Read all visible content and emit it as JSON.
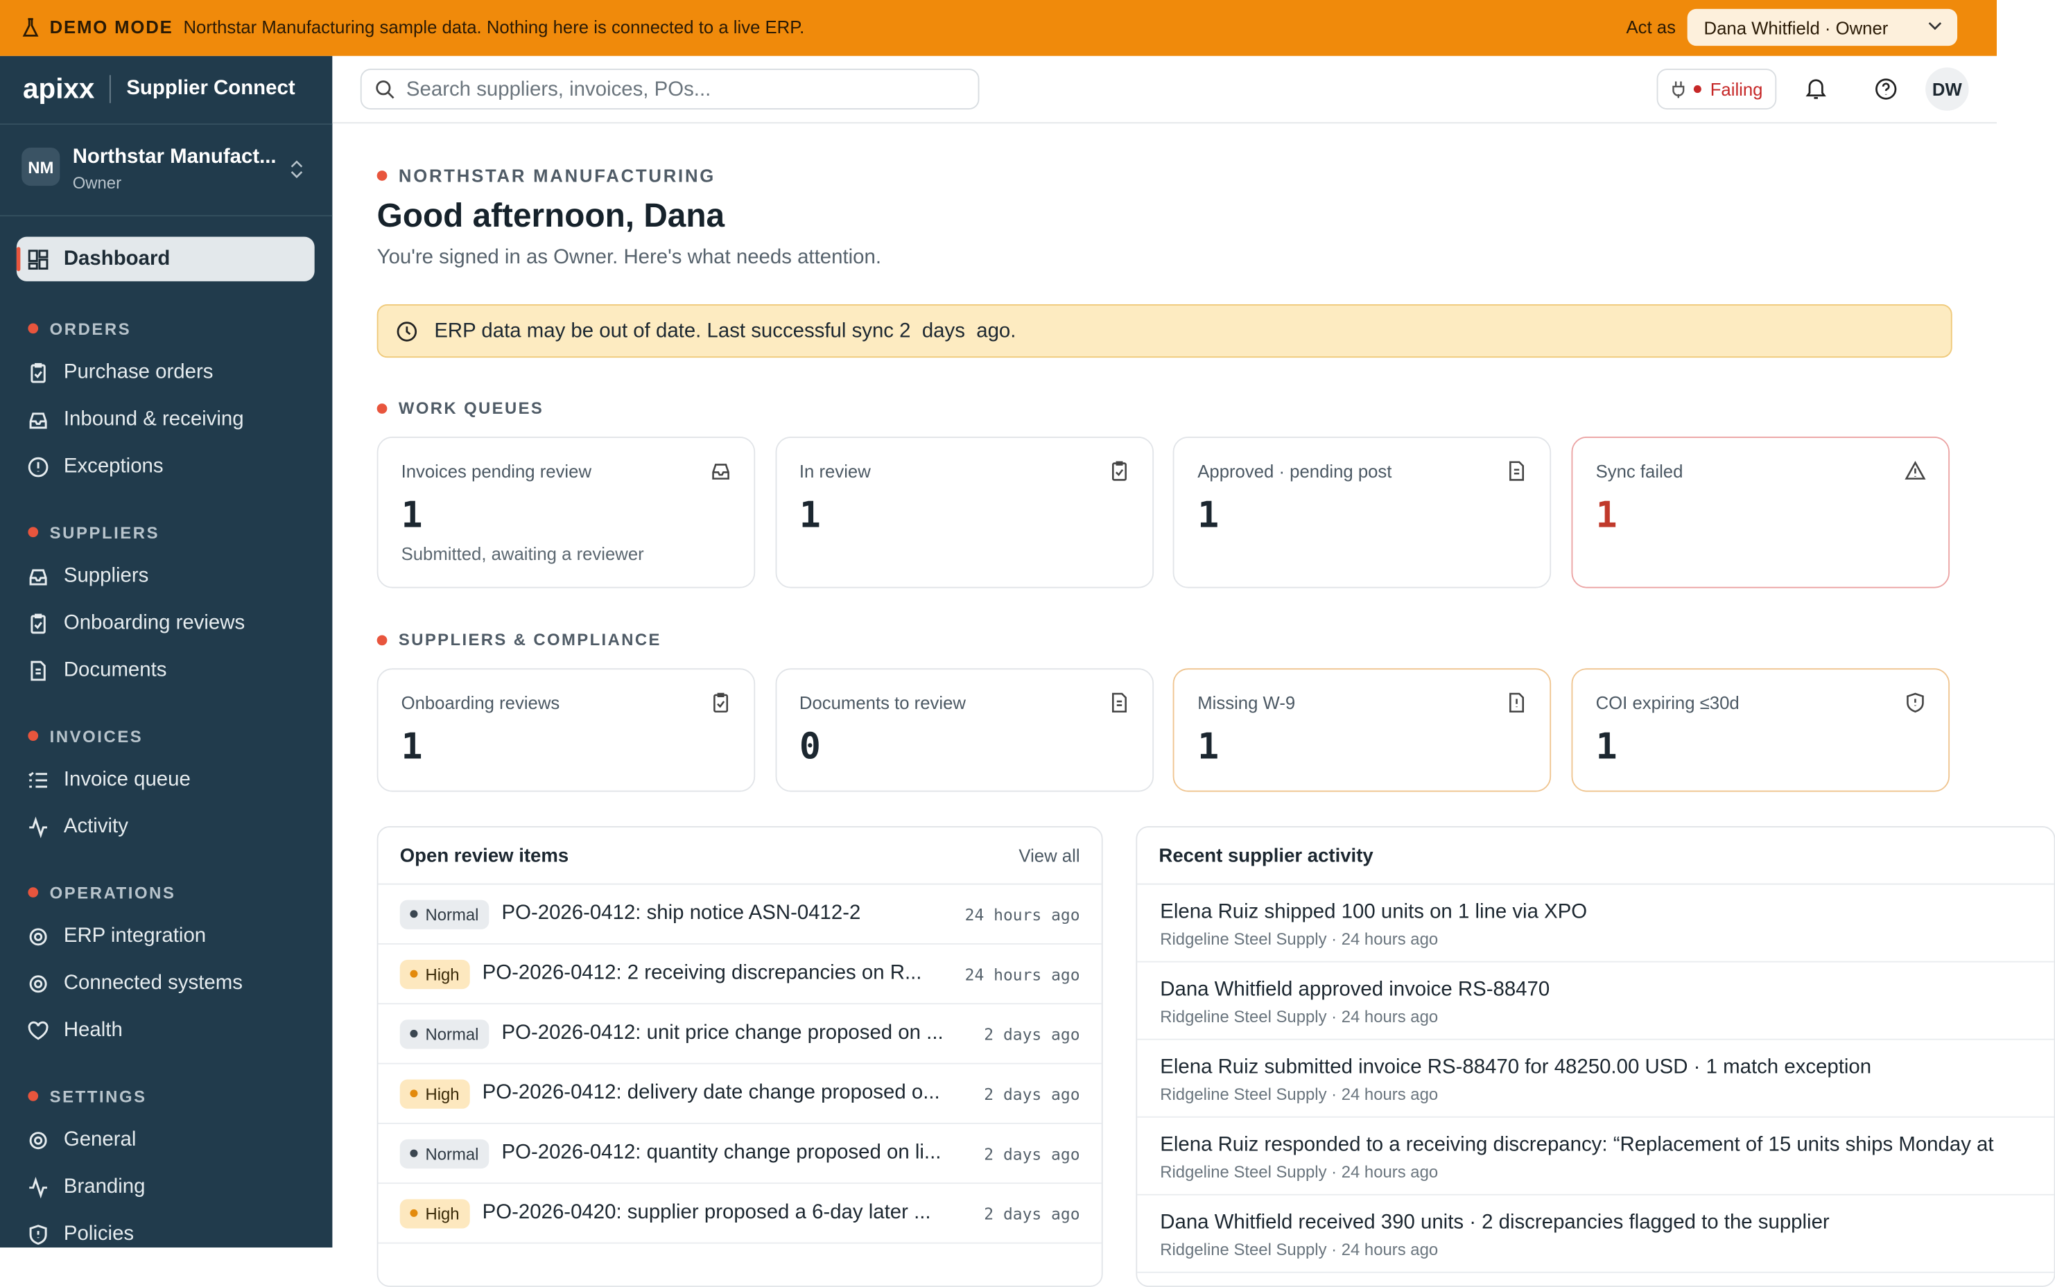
{
  "banner": {
    "mode": "DEMO MODE",
    "message": "Northstar Manufacturing sample data. Nothing here is connected to a live ERP.",
    "act_as_label": "Act as",
    "act_as_value": "Dana Whitfield · Owner"
  },
  "brand": {
    "logo": "apixx",
    "product": "Supplier Connect"
  },
  "search": {
    "placeholder": "Search suppliers, invoices, POs..."
  },
  "topbar": {
    "status": "Failing",
    "avatar": "DW"
  },
  "org": {
    "initials": "NM",
    "name": "Northstar Manufact...",
    "role": "Owner"
  },
  "nav": {
    "active": "Dashboard",
    "sections": [
      {
        "title": "ORDERS",
        "items": [
          "Purchase orders",
          "Inbound & receiving",
          "Exceptions"
        ]
      },
      {
        "title": "SUPPLIERS",
        "items": [
          "Suppliers",
          "Onboarding reviews",
          "Documents"
        ]
      },
      {
        "title": "INVOICES",
        "items": [
          "Invoice queue",
          "Activity"
        ]
      },
      {
        "title": "OPERATIONS",
        "items": [
          "ERP integration",
          "Connected systems",
          "Health"
        ]
      },
      {
        "title": "SETTINGS",
        "items": [
          "General",
          "Branding",
          "Policies"
        ]
      }
    ]
  },
  "page": {
    "eyebrow": "NORTHSTAR MANUFACTURING",
    "title": "Good afternoon, Dana",
    "subtitle": "You're signed in as Owner. Here's what needs attention.",
    "alert": "ERP data may be out of date. Last successful sync 2  days  ago."
  },
  "work_queues": {
    "title": "WORK QUEUES",
    "cards": [
      {
        "label": "Invoices pending review",
        "value": 1,
        "note": "Submitted, awaiting a reviewer"
      },
      {
        "label": "In review",
        "value": 1
      },
      {
        "label": "Approved · pending post",
        "value": 1
      },
      {
        "label": "Sync failed",
        "value": 1
      }
    ]
  },
  "compliance": {
    "title": "SUPPLIERS & COMPLIANCE",
    "cards": [
      {
        "label": "Onboarding reviews",
        "value": 1
      },
      {
        "label": "Documents to review",
        "value": 0
      },
      {
        "label": "Missing W-9",
        "value": 1
      },
      {
        "label": "COI expiring ≤30d",
        "value": 1
      }
    ]
  },
  "review": {
    "title": "Open review items",
    "link": "View all",
    "items": [
      {
        "priority": "Normal",
        "text": "PO-2026-0412: ship notice ASN-0412-2",
        "time": "24 hours ago"
      },
      {
        "priority": "High",
        "text": "PO-2026-0412: 2 receiving discrepancies on R...",
        "time": "24 hours ago"
      },
      {
        "priority": "Normal",
        "text": "PO-2026-0412: unit price change proposed on ...",
        "time": "2 days ago"
      },
      {
        "priority": "High",
        "text": "PO-2026-0412: delivery date change proposed o...",
        "time": "2 days ago"
      },
      {
        "priority": "Normal",
        "text": "PO-2026-0412: quantity change proposed on li...",
        "time": "2 days ago"
      },
      {
        "priority": "High",
        "text": "PO-2026-0420: supplier proposed a 6-day later ...",
        "time": "2 days ago"
      }
    ]
  },
  "activity": {
    "title": "Recent supplier activity",
    "items": [
      {
        "text": "Elena Ruiz shipped 100 units on 1 line via XPO",
        "meta": "Ridgeline Steel Supply · 24 hours ago"
      },
      {
        "text": "Dana Whitfield approved invoice RS-88470",
        "meta": "Ridgeline Steel Supply · 24 hours ago"
      },
      {
        "text": "Elena Ruiz submitted invoice RS-88470 for 48250.00 USD · 1 match exception",
        "meta": "Ridgeline Steel Supply · 24 hours ago"
      },
      {
        "text": "Elena Ruiz responded to a receiving discrepancy: “Replacement of 15 units ships Monday at",
        "meta": "Ridgeline Steel Supply · 24 hours ago"
      },
      {
        "text": "Dana Whitfield received 390 units · 2 discrepancies flagged to the supplier",
        "meta": "Ridgeline Steel Supply · 24 hours ago"
      }
    ]
  }
}
